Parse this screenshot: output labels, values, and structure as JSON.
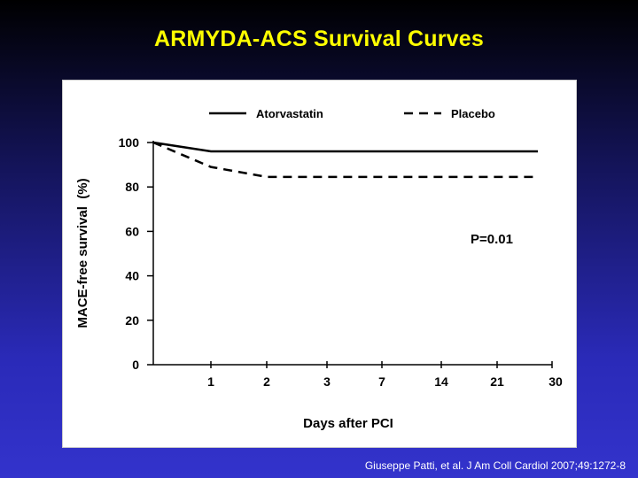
{
  "slide": {
    "title": "ARMYDA-ACS Survival Curves",
    "title_color": "#ffff00",
    "citation": "Giuseppe Patti, et al. J Am Coll Cardiol 2007;49:1272-8",
    "citation_color": "#ffffff"
  },
  "chart_data": {
    "type": "line",
    "title": "",
    "xlabel": "Days after PCI",
    "ylabel": "MACE-free survival  (%)",
    "x_ticks": [
      "1",
      "2",
      "3",
      "7",
      "14",
      "21",
      "30"
    ],
    "y_ticks": [
      0,
      20,
      40,
      60,
      80,
      100
    ],
    "ylim": [
      0,
      100
    ],
    "annotation": "P=0.01",
    "legend_position": "top",
    "series": [
      {
        "name": "Atorvastatin",
        "style": "solid",
        "color": "#000000",
        "points": [
          {
            "x": "0",
            "y": 100
          },
          {
            "x": "1",
            "y": 96
          },
          {
            "x": "2",
            "y": 96
          },
          {
            "x": "3",
            "y": 96
          },
          {
            "x": "7",
            "y": 96
          },
          {
            "x": "14",
            "y": 96
          },
          {
            "x": "21",
            "y": 96
          },
          {
            "x": "30",
            "y": 96
          }
        ]
      },
      {
        "name": "Placebo",
        "style": "dashed",
        "color": "#000000",
        "points": [
          {
            "x": "0",
            "y": 100
          },
          {
            "x": "1",
            "y": 89
          },
          {
            "x": "2",
            "y": 84.5
          },
          {
            "x": "3",
            "y": 84.5
          },
          {
            "x": "7",
            "y": 84.5
          },
          {
            "x": "14",
            "y": 84.5
          },
          {
            "x": "21",
            "y": 84.5
          },
          {
            "x": "30",
            "y": 84.5
          }
        ]
      }
    ]
  }
}
